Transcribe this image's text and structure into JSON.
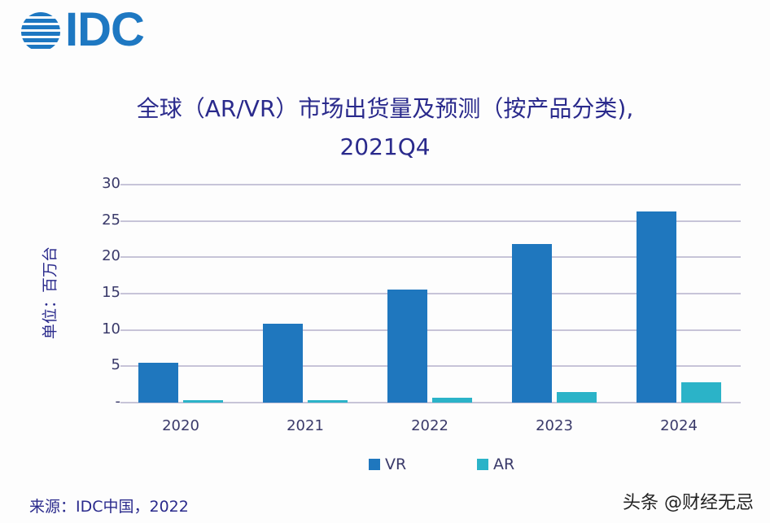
{
  "logo": {
    "text": "IDC",
    "color": "#1e78c2"
  },
  "title": {
    "line1": "全球（AR/VR）市场出货量及预测（按产品分类),",
    "line2": "2021Q4"
  },
  "source": "来源：IDC中国，2022",
  "watermark": "头条 @财经无忌",
  "colors": {
    "VR": "#1f77be",
    "AR": "#2bb3c8",
    "grid": "#c7c4d8",
    "text": "#2a2a8c"
  },
  "chart_data": {
    "type": "bar",
    "title": "全球（AR/VR）市场出货量及预测（按产品分类), 2021Q4",
    "xlabel": "",
    "ylabel": "单位：百万台",
    "categories": [
      "2020",
      "2021",
      "2022",
      "2023",
      "2024"
    ],
    "series": [
      {
        "name": "VR",
        "values": [
          5.5,
          10.9,
          15.6,
          21.8,
          26.3
        ]
      },
      {
        "name": "AR",
        "values": [
          0.3,
          0.3,
          0.7,
          1.5,
          2.8
        ]
      }
    ],
    "ylim": [
      0,
      30
    ],
    "yticks": [
      "-",
      "5",
      "10",
      "15",
      "20",
      "25",
      "30"
    ],
    "grid": true,
    "legend_position": "bottom"
  }
}
